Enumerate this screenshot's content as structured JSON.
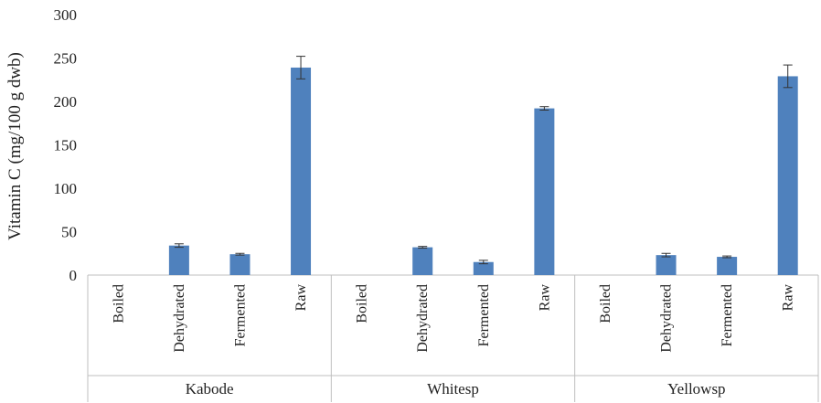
{
  "chart_data": {
    "type": "bar",
    "ylabel": "Vitamin C (mg/100 g dwb)",
    "ylim": [
      0,
      300
    ],
    "yticks": [
      0,
      50,
      100,
      150,
      200,
      250,
      300
    ],
    "grid": false,
    "legend": "none",
    "bar_color": "#4f81bd",
    "groups": [
      {
        "name": "Kabode",
        "categories": [
          "Boiled",
          "Dehydrated",
          "Fermented",
          "Raw"
        ],
        "values": [
          0,
          34,
          24,
          239
        ],
        "errors": [
          0,
          2,
          1,
          13
        ]
      },
      {
        "name": "Whitesp",
        "categories": [
          "Boiled",
          "Dehydrated",
          "Fermented",
          "Raw"
        ],
        "values": [
          0,
          32,
          15,
          192
        ],
        "errors": [
          0,
          1,
          2,
          2
        ]
      },
      {
        "name": "Yellowsp",
        "categories": [
          "Boiled",
          "Dehydrated",
          "Fermented",
          "Raw"
        ],
        "values": [
          0,
          23,
          21,
          229
        ],
        "errors": [
          0,
          2,
          1,
          13
        ]
      }
    ]
  }
}
